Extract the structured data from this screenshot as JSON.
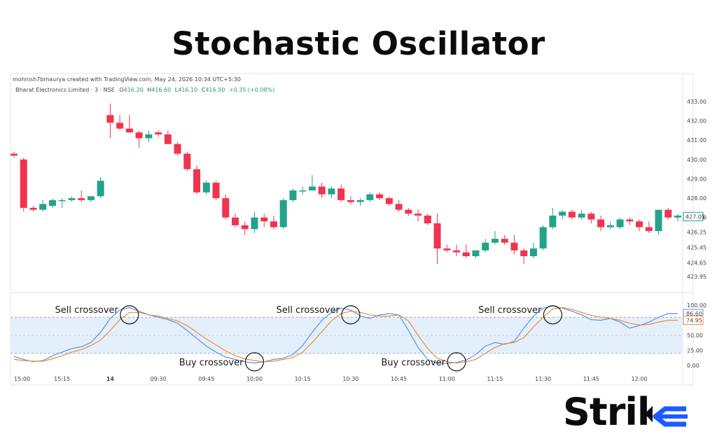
{
  "title": "Stochastic Oscillator",
  "header": {
    "credit": "mohnish7bmaurya created with TradingView.com, May 24, 2026 10:34 UTC+5:30",
    "symbol": "Bharat Electronics Limited · 3 · NSE",
    "open_label": "O",
    "open": "416.20",
    "high_label": "H",
    "high": "416.60",
    "low_label": "L",
    "low": "416.10",
    "close_label": "C",
    "close": "416.50",
    "change": "+0.35 (+0.08%)"
  },
  "logo": {
    "text": "Strike",
    "accent": "#1a5cff"
  },
  "colors": {
    "up": "#22a38a",
    "down": "#f0344e",
    "k_line": "#5b8def",
    "d_line": "#f08a3a",
    "band": "#e3f0fb"
  },
  "chart_data": [
    {
      "type": "candlestick",
      "y_ticks": [
        "433.00",
        "432.00",
        "431.00",
        "430.00",
        "429.00",
        "428.00",
        "427.00",
        "426.25",
        "425.45",
        "424.65",
        "423.95"
      ],
      "tick_values": [
        433.0,
        432.0,
        431.0,
        430.0,
        429.0,
        428.0,
        427.0,
        426.25,
        425.45,
        424.65,
        423.95
      ],
      "last_price_label": "427.05",
      "last_price": 427.05,
      "candles": [
        [
          430.3,
          430.4,
          430.1,
          430.2
        ],
        [
          430.0,
          430.1,
          427.3,
          427.5
        ],
        [
          427.5,
          427.6,
          427.3,
          427.4
        ],
        [
          427.4,
          427.9,
          427.3,
          427.7
        ],
        [
          427.6,
          428.0,
          427.5,
          427.9
        ],
        [
          427.9,
          428.0,
          427.5,
          427.9
        ],
        [
          427.9,
          428.1,
          427.8,
          428.0
        ],
        [
          428.0,
          428.4,
          427.8,
          427.9
        ],
        [
          427.9,
          428.1,
          427.8,
          428.1
        ],
        [
          428.1,
          429.1,
          428.0,
          428.9
        ],
        [
          432.3,
          432.9,
          431.1,
          431.9
        ],
        [
          431.9,
          432.3,
          431.5,
          431.6
        ],
        [
          431.6,
          432.3,
          431.4,
          431.4
        ],
        [
          431.4,
          431.5,
          430.6,
          431.1
        ],
        [
          431.1,
          431.5,
          430.9,
          431.3
        ],
        [
          431.4,
          431.5,
          431.2,
          431.3
        ],
        [
          431.3,
          431.5,
          430.8,
          430.8
        ],
        [
          430.8,
          430.9,
          430.2,
          430.3
        ],
        [
          430.3,
          430.4,
          429.4,
          429.5
        ],
        [
          429.5,
          429.7,
          428.2,
          428.3
        ],
        [
          428.3,
          428.9,
          428.2,
          428.8
        ],
        [
          428.8,
          428.9,
          427.9,
          428.0
        ],
        [
          428.0,
          428.2,
          426.9,
          427.0
        ],
        [
          427.0,
          427.2,
          426.5,
          426.6
        ],
        [
          426.6,
          426.8,
          426.1,
          426.4
        ],
        [
          426.4,
          427.3,
          426.2,
          427.0
        ],
        [
          427.0,
          427.2,
          426.5,
          426.8
        ],
        [
          426.8,
          427.1,
          426.4,
          426.5
        ],
        [
          426.5,
          428.0,
          426.4,
          427.9
        ],
        [
          427.9,
          428.5,
          427.8,
          428.4
        ],
        [
          428.4,
          428.6,
          428.2,
          428.4
        ],
        [
          428.4,
          429.2,
          428.4,
          428.6
        ],
        [
          428.6,
          428.8,
          428.0,
          428.2
        ],
        [
          428.2,
          428.6,
          428.0,
          428.5
        ],
        [
          428.5,
          428.7,
          427.8,
          427.9
        ],
        [
          427.9,
          428.1,
          427.7,
          427.8
        ],
        [
          427.8,
          428.0,
          427.6,
          427.9
        ],
        [
          427.9,
          428.3,
          427.8,
          428.2
        ],
        [
          428.2,
          428.3,
          427.9,
          428.0
        ],
        [
          428.0,
          428.1,
          427.6,
          427.7
        ],
        [
          427.7,
          427.9,
          427.3,
          427.4
        ],
        [
          427.4,
          427.5,
          427.1,
          427.2
        ],
        [
          427.2,
          427.4,
          426.8,
          427.1
        ],
        [
          427.1,
          427.2,
          426.6,
          426.7
        ],
        [
          426.7,
          427.2,
          424.6,
          425.4
        ],
        [
          425.4,
          425.6,
          425.2,
          425.3
        ],
        [
          425.3,
          425.6,
          425.0,
          425.2
        ],
        [
          425.2,
          425.6,
          424.9,
          425.0
        ],
        [
          425.0,
          425.3,
          424.9,
          425.3
        ],
        [
          425.3,
          425.9,
          425.2,
          425.7
        ],
        [
          425.7,
          426.3,
          425.6,
          425.9
        ],
        [
          425.9,
          426.1,
          425.6,
          425.7
        ],
        [
          425.7,
          426.1,
          425.1,
          425.3
        ],
        [
          425.3,
          425.4,
          424.6,
          425.0
        ],
        [
          425.0,
          425.7,
          424.9,
          425.4
        ],
        [
          425.4,
          426.6,
          425.3,
          426.5
        ],
        [
          426.5,
          427.5,
          426.4,
          427.1
        ],
        [
          427.1,
          427.4,
          426.9,
          427.3
        ],
        [
          427.3,
          427.4,
          426.9,
          427.0
        ],
        [
          427.0,
          427.4,
          426.9,
          427.2
        ],
        [
          427.2,
          427.3,
          426.7,
          426.9
        ],
        [
          426.9,
          427.1,
          426.3,
          426.5
        ],
        [
          426.5,
          426.8,
          426.4,
          426.6
        ],
        [
          426.5,
          427.0,
          426.4,
          426.9
        ],
        [
          426.9,
          427.0,
          426.6,
          426.8
        ],
        [
          426.8,
          426.9,
          426.3,
          426.5
        ],
        [
          426.5,
          426.8,
          426.2,
          426.3
        ],
        [
          426.3,
          427.4,
          426.1,
          427.4
        ],
        [
          427.4,
          427.5,
          426.9,
          427.0
        ],
        [
          427.0,
          427.2,
          426.8,
          427.1
        ]
      ]
    },
    {
      "type": "line",
      "x_labels": [
        "15:00",
        "15:15",
        "14",
        "09:30",
        "09:45",
        "10:00",
        "10:15",
        "10:30",
        "10:45",
        "11:00",
        "11:15",
        "11:30",
        "11:45",
        "12:00"
      ],
      "y_ticks": [
        "100.00",
        "75.00",
        "50.00",
        "25.00",
        "0.00"
      ],
      "tick_values": [
        100,
        75,
        50,
        25,
        0
      ],
      "ylim": [
        0,
        100
      ],
      "bands": [
        20,
        80
      ],
      "last_k_label": "86.60",
      "last_d_label": "74.95",
      "series": [
        {
          "values": [
            15,
            10,
            6,
            8,
            16,
            22,
            28,
            31,
            38,
            55,
            78,
            92,
            96,
            90,
            84,
            80,
            76,
            70,
            58,
            45,
            32,
            22,
            14,
            10,
            6,
            4,
            6,
            10,
            12,
            18,
            33,
            55,
            75,
            88,
            95,
            92,
            82,
            78,
            84,
            86,
            84,
            58,
            30,
            10,
            4,
            3,
            5,
            9,
            18,
            32,
            38,
            35,
            40,
            62,
            82,
            95,
            99,
            95,
            90,
            84,
            76,
            75,
            78,
            72,
            62,
            66,
            72,
            80,
            86,
            86
          ]
        },
        {
          "values": [
            10,
            8,
            7,
            7,
            11,
            16,
            22,
            26,
            33,
            42,
            58,
            76,
            88,
            88,
            84,
            82,
            78,
            74,
            66,
            55,
            44,
            34,
            24,
            16,
            11,
            8,
            6,
            7,
            10,
            13,
            22,
            38,
            56,
            74,
            86,
            90,
            88,
            84,
            82,
            82,
            84,
            74,
            50,
            28,
            12,
            6,
            4,
            6,
            10,
            20,
            30,
            36,
            38,
            46,
            64,
            80,
            94,
            96,
            93,
            88,
            83,
            80,
            78,
            75,
            70,
            67,
            68,
            72,
            75,
            75
          ]
        }
      ],
      "annotations": [
        {
          "text": "Sell crossover",
          "index": 12
        },
        {
          "text": "Buy crossover",
          "index": 25
        },
        {
          "text": "Sell crossover",
          "index": 35
        },
        {
          "text": "Buy crossover",
          "index": 46
        },
        {
          "text": "Sell crossover",
          "index": 56
        }
      ]
    }
  ]
}
